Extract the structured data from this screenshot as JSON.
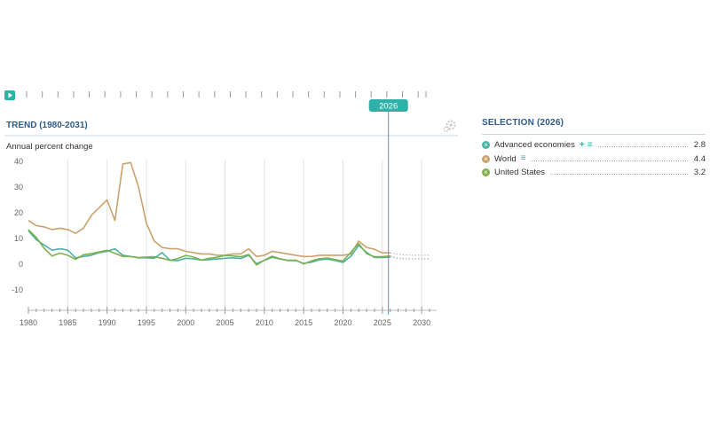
{
  "timeline": {
    "play_icon": "play-icon",
    "current_year_label": "2026",
    "current_year": 2026,
    "start_year": 1980,
    "end_year": 2031
  },
  "trend": {
    "title": "TREND (1980-2031)",
    "settings_icon": "gears-icon"
  },
  "selection": {
    "title": "SELECTION (2026)",
    "items": [
      {
        "label": "Advanced economies",
        "value": "2.8",
        "color": "#4bb3a7",
        "marker_icon": "remove-icon",
        "tools": [
          "add-icon",
          "menu-icon"
        ]
      },
      {
        "label": "World",
        "value": "4.4",
        "color": "#c9a26e",
        "marker_icon": "remove-icon",
        "tools": [
          "menu-icon"
        ]
      },
      {
        "label": "United States",
        "value": "3.2",
        "color": "#7fb04d",
        "marker_icon": "remove-icon",
        "tools": []
      }
    ]
  },
  "chart_data": {
    "type": "line",
    "ylabel": "Annual percent change",
    "ylim": [
      -10,
      40
    ],
    "yticks": [
      40,
      30,
      20,
      10,
      0,
      -10
    ],
    "xlim": [
      1980,
      2031
    ],
    "xticks": [
      1980,
      1985,
      1990,
      1995,
      2000,
      2005,
      2010,
      2015,
      2020,
      2025,
      2030
    ],
    "grid": "vertical",
    "projection_start": 2026,
    "series": [
      {
        "name": "World",
        "color": "#c9a26e",
        "x": [
          1980,
          1981,
          1982,
          1983,
          1984,
          1985,
          1986,
          1987,
          1988,
          1989,
          1990,
          1991,
          1992,
          1993,
          1994,
          1995,
          1996,
          1997,
          1998,
          1999,
          2000,
          2001,
          2002,
          2003,
          2004,
          2005,
          2006,
          2007,
          2008,
          2009,
          2010,
          2011,
          2012,
          2013,
          2014,
          2015,
          2016,
          2017,
          2018,
          2019,
          2020,
          2021,
          2022,
          2023,
          2024,
          2025,
          2026,
          2027,
          2028,
          2029,
          2030,
          2031
        ],
        "y": [
          17,
          15,
          14.5,
          13.5,
          14,
          13.5,
          12,
          14,
          19,
          22,
          25,
          17,
          39,
          39.5,
          30,
          16,
          9,
          6.5,
          6,
          6,
          5,
          4.5,
          4,
          4,
          3.5,
          3.5,
          4,
          4,
          6,
          3,
          3.5,
          5,
          4.5,
          4,
          3.5,
          3,
          3,
          3.5,
          3.5,
          3.5,
          3.5,
          4,
          9,
          6.5,
          5.8,
          4.4,
          4.4,
          3.9,
          3.6,
          3.5,
          3.5,
          3.5
        ]
      },
      {
        "name": "Advanced economies",
        "color": "#4bb3a7",
        "x": [
          1980,
          1981,
          1982,
          1983,
          1984,
          1985,
          1986,
          1987,
          1988,
          1989,
          1990,
          1991,
          1992,
          1993,
          1994,
          1995,
          1996,
          1997,
          1998,
          1999,
          2000,
          2001,
          2002,
          2003,
          2004,
          2005,
          2006,
          2007,
          2008,
          2009,
          2010,
          2011,
          2012,
          2013,
          2014,
          2015,
          2016,
          2017,
          2018,
          2019,
          2020,
          2021,
          2022,
          2023,
          2024,
          2025,
          2026,
          2027,
          2028,
          2029,
          2030,
          2031
        ],
        "y": [
          13,
          9.5,
          7.5,
          5.5,
          6,
          5.5,
          2.5,
          3,
          3.5,
          4.5,
          5,
          6,
          3.5,
          3,
          2.5,
          2.5,
          2.3,
          4.5,
          1.5,
          1.4,
          2.3,
          2.1,
          1.6,
          1.8,
          2,
          2.3,
          2.5,
          2.2,
          3.5,
          0.2,
          1.5,
          2.7,
          2,
          1.4,
          1.4,
          0.3,
          0.8,
          1.7,
          2,
          1.4,
          0.7,
          3.1,
          7.3,
          4.6,
          2.6,
          2.6,
          2.8,
          2.3,
          2.1,
          2,
          2,
          2
        ]
      },
      {
        "name": "United States",
        "color": "#7fb04d",
        "x": [
          1980,
          1981,
          1982,
          1983,
          1984,
          1985,
          1986,
          1987,
          1988,
          1989,
          1990,
          1991,
          1992,
          1993,
          1994,
          1995,
          1996,
          1997,
          1998,
          1999,
          2000,
          2001,
          2002,
          2003,
          2004,
          2005,
          2006,
          2007,
          2008,
          2009,
          2010,
          2011,
          2012,
          2013,
          2014,
          2015,
          2016,
          2017,
          2018,
          2019,
          2020,
          2021,
          2022,
          2023,
          2024,
          2025,
          2026,
          2027,
          2028,
          2029,
          2030,
          2031
        ],
        "y": [
          13.5,
          10.4,
          6.2,
          3.2,
          4.3,
          3.5,
          1.9,
          3.7,
          4.1,
          4.8,
          5.4,
          4.2,
          3,
          3,
          2.6,
          2.8,
          2.9,
          2.3,
          1.5,
          2.2,
          3.4,
          2.8,
          1.6,
          2.3,
          2.7,
          3.4,
          3.2,
          2.9,
          3.8,
          -0.3,
          1.6,
          3.1,
          2.1,
          1.5,
          1.6,
          0.1,
          1.3,
          2.1,
          2.4,
          1.8,
          1.2,
          4.7,
          8,
          4.1,
          2.9,
          2.9,
          3.2,
          2.4,
          2.2,
          2.1,
          2.1,
          2.1
        ]
      }
    ]
  }
}
